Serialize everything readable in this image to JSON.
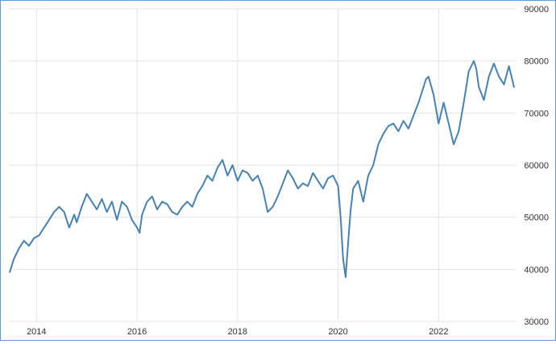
{
  "chart_data": {
    "type": "line",
    "title": "",
    "xlabel": "",
    "ylabel": "",
    "xlim": [
      2013.45,
      2023.55
    ],
    "ylim": [
      30000,
      90000
    ],
    "x_ticks": [
      {
        "value": 2014,
        "label": "2014"
      },
      {
        "value": 2016,
        "label": "2016"
      },
      {
        "value": 2018,
        "label": "2018"
      },
      {
        "value": 2020,
        "label": "2020"
      },
      {
        "value": 2022,
        "label": "2022"
      }
    ],
    "y_ticks": [
      {
        "value": 30000,
        "label": "30000"
      },
      {
        "value": 40000,
        "label": "40000"
      },
      {
        "value": 50000,
        "label": "50000"
      },
      {
        "value": 60000,
        "label": "60000"
      },
      {
        "value": 70000,
        "label": "70000"
      },
      {
        "value": 80000,
        "label": "80000"
      },
      {
        "value": 90000,
        "label": "90000"
      }
    ],
    "grid": true,
    "y_axis_position": "right",
    "legend": "none",
    "colors": {
      "line": "#4682b4",
      "grid": "#e3e3e3",
      "frame": "#5b9bd5"
    },
    "series": [
      {
        "x": [
          2013.47,
          2013.55,
          2013.65,
          2013.75,
          2013.85,
          2013.95,
          2014.05,
          2014.15,
          2014.25,
          2014.35,
          2014.45,
          2014.55,
          2014.65,
          2014.75,
          2014.8,
          2014.9,
          2015.0,
          2015.1,
          2015.2,
          2015.3,
          2015.4,
          2015.5,
          2015.6,
          2015.7,
          2015.8,
          2015.9,
          2016.0,
          2016.05,
          2016.1,
          2016.2,
          2016.3,
          2016.4,
          2016.5,
          2016.6,
          2016.7,
          2016.8,
          2016.9,
          2017.0,
          2017.1,
          2017.2,
          2017.3,
          2017.4,
          2017.5,
          2017.6,
          2017.7,
          2017.8,
          2017.9,
          2018.0,
          2018.1,
          2018.2,
          2018.3,
          2018.4,
          2018.5,
          2018.6,
          2018.7,
          2018.8,
          2018.9,
          2019.0,
          2019.1,
          2019.2,
          2019.3,
          2019.4,
          2019.5,
          2019.6,
          2019.7,
          2019.8,
          2019.9,
          2020.0,
          2020.05,
          2020.1,
          2020.15,
          2020.2,
          2020.25,
          2020.3,
          2020.4,
          2020.5,
          2020.6,
          2020.7,
          2020.8,
          2020.9,
          2021.0,
          2021.1,
          2021.2,
          2021.3,
          2021.4,
          2021.5,
          2021.6,
          2021.7,
          2021.75,
          2021.8,
          2021.9,
          2022.0,
          2022.1,
          2022.2,
          2022.3,
          2022.4,
          2022.5,
          2022.6,
          2022.7,
          2022.75,
          2022.8,
          2022.9,
          2023.0,
          2023.1,
          2023.2,
          2023.3,
          2023.4,
          2023.5
        ],
        "values": [
          39500,
          42000,
          44000,
          45500,
          44500,
          46000,
          46500,
          48000,
          49500,
          51000,
          52000,
          51000,
          48000,
          50500,
          49000,
          52000,
          54500,
          53000,
          51500,
          53500,
          51000,
          53000,
          49500,
          53000,
          52000,
          49500,
          48000,
          47000,
          50500,
          53000,
          54000,
          51500,
          53000,
          52500,
          51000,
          50500,
          52000,
          53000,
          52000,
          54500,
          56000,
          58000,
          57000,
          59500,
          61000,
          58000,
          60000,
          57000,
          59000,
          58500,
          57000,
          58000,
          55500,
          51000,
          52000,
          54000,
          56500,
          59000,
          57500,
          55500,
          56500,
          56000,
          58500,
          57000,
          55500,
          57500,
          58000,
          56000,
          50000,
          42000,
          38500,
          45000,
          51500,
          55500,
          57000,
          53000,
          58000,
          60000,
          64000,
          66000,
          67500,
          68000,
          66500,
          68500,
          67000,
          69500,
          72000,
          75000,
          76500,
          77000,
          73500,
          68000,
          72000,
          68000,
          64000,
          66500,
          72000,
          78000,
          80000,
          78500,
          75000,
          72500,
          77000,
          79500,
          77000,
          75500,
          79000,
          75000
        ]
      }
    ]
  }
}
